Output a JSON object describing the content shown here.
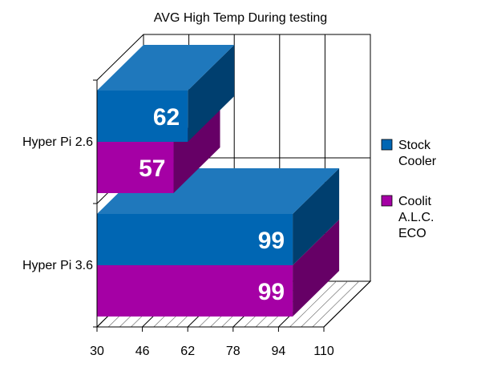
{
  "chart_data": {
    "type": "bar",
    "orientation": "horizontal",
    "three_d": true,
    "title": "AVG High Temp During testing",
    "categories": [
      "Hyper Pi 2.6",
      "Hyper Pi  3.6"
    ],
    "series": [
      {
        "name": "Stock Cooler",
        "values": [
          62,
          99
        ],
        "color": "#0066b3"
      },
      {
        "name": "Coolit A.L.C. ECO",
        "values": [
          57,
          99
        ],
        "color": "#a500a5"
      }
    ],
    "legend_lines": [
      [
        "Stock",
        "Cooler"
      ],
      [
        "Coolit",
        "A.L.C.",
        "ECO"
      ]
    ],
    "xlim": [
      30,
      110
    ],
    "ticks": [
      "30",
      "46",
      "62",
      "78",
      "94",
      "110"
    ],
    "grid": true,
    "legend": "right"
  }
}
